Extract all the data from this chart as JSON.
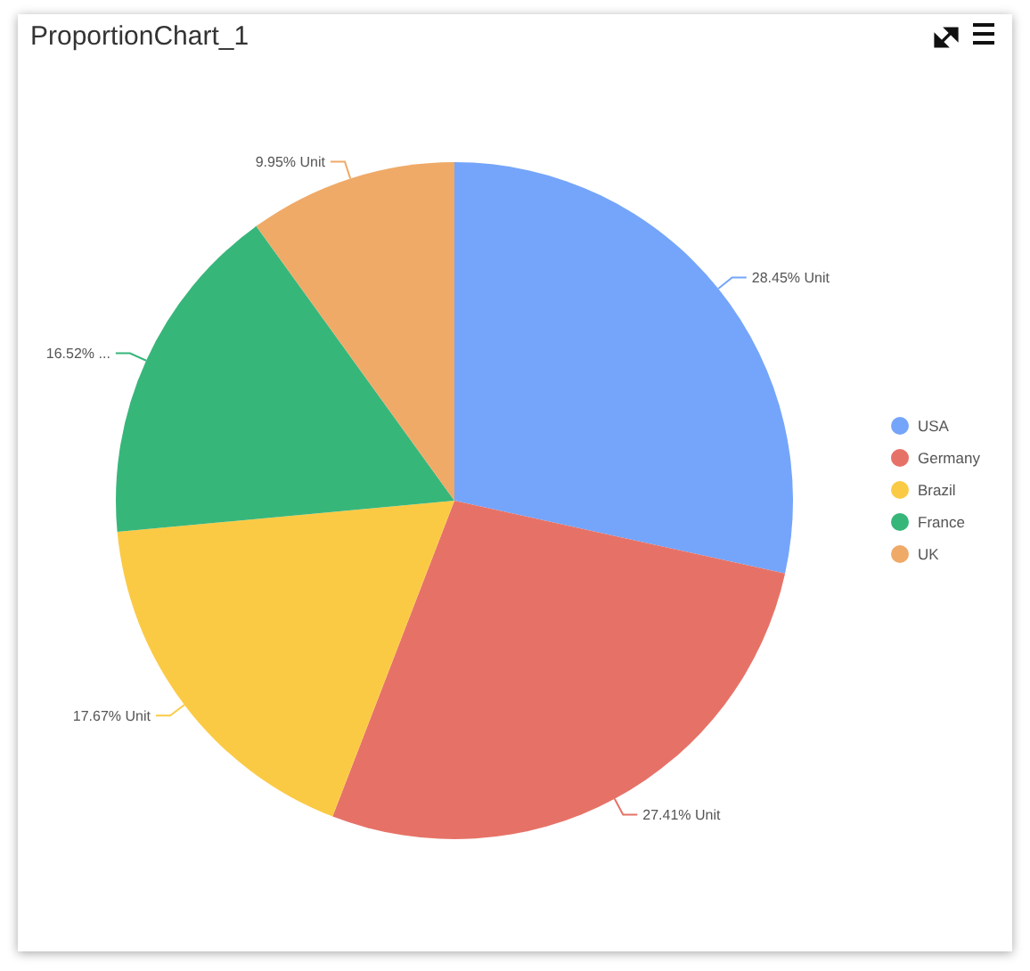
{
  "chart_data": {
    "type": "pie",
    "title": "ProportionChart_1",
    "categories": [
      "USA",
      "Germany",
      "Brazil",
      "France",
      "UK"
    ],
    "values": [
      28.45,
      27.41,
      17.67,
      16.52,
      9.95
    ],
    "colors": [
      "#75a5fa",
      "#e67267",
      "#fbca45",
      "#37b67a",
      "#efaa68"
    ],
    "value_labels": [
      "28.45% Unit",
      "27.41% Unit",
      "17.67% Unit",
      "16.52% ...",
      "9.95% Unit"
    ],
    "legend": "right"
  }
}
